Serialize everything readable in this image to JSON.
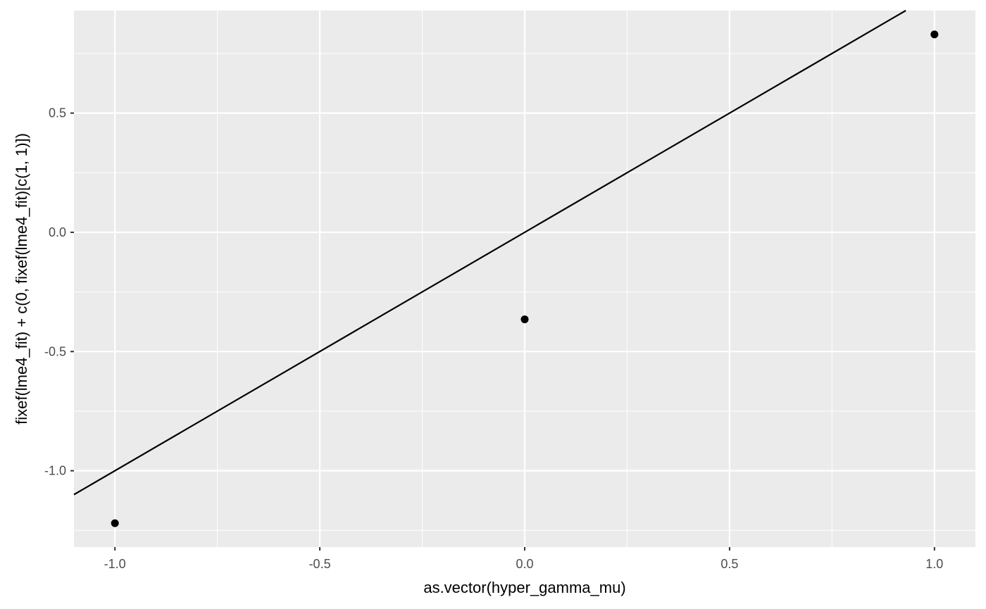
{
  "chart_data": {
    "type": "scatter",
    "xlabel": "as.vector(hyper_gamma_mu)",
    "ylabel": "fixef(lme4_fit) + c(0, fixef(lme4_fit)[c(1, 1)])",
    "xlim": [
      -1.1,
      1.1
    ],
    "ylim": [
      -1.32,
      0.93
    ],
    "x_ticks": [
      -1.0,
      -0.5,
      0.0,
      0.5,
      1.0
    ],
    "x_tick_labels": [
      "-1.0",
      "-0.5",
      "0.0",
      "0.5",
      "1.0"
    ],
    "y_ticks": [
      -1.0,
      -0.5,
      0.0,
      0.5
    ],
    "y_tick_labels": [
      "-1.0",
      "-0.5",
      "0.0",
      "0.5"
    ],
    "points": [
      {
        "x": -1.0,
        "y": -1.22
      },
      {
        "x": 0.0,
        "y": -0.365
      },
      {
        "x": 1.0,
        "y": 0.83
      }
    ],
    "reference_line": {
      "slope": 1,
      "intercept": 0
    },
    "grid": true,
    "colors": {
      "panel_background": "#ebebeb",
      "grid": "#ffffff",
      "point": "#000000",
      "line": "#000000"
    }
  }
}
